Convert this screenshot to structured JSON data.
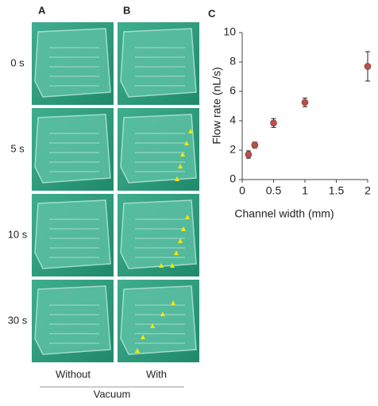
{
  "figure": {
    "panels": [
      "A",
      "B",
      "C"
    ],
    "rows": [
      "0 s",
      "5 s",
      "10 s",
      "30 s"
    ],
    "columns": [
      "Without",
      "With"
    ],
    "group": "Vacuum"
  },
  "chart_data": {
    "type": "scatter",
    "xlabel": "Channel width (mm)",
    "ylabel": "Flow rate (nL/s)",
    "x": [
      0.1,
      0.2,
      0.5,
      1,
      2
    ],
    "values": [
      1.7,
      2.35,
      3.85,
      5.25,
      7.7
    ],
    "errors": [
      0.25,
      0.2,
      0.3,
      0.3,
      1.0
    ],
    "color": "#b9504c",
    "xlim": [
      0,
      2
    ],
    "ylim": [
      0,
      10
    ],
    "xticks": [
      0,
      0.5,
      1,
      1.5,
      2
    ],
    "yticks": [
      0,
      2,
      4,
      6,
      8,
      10
    ]
  }
}
